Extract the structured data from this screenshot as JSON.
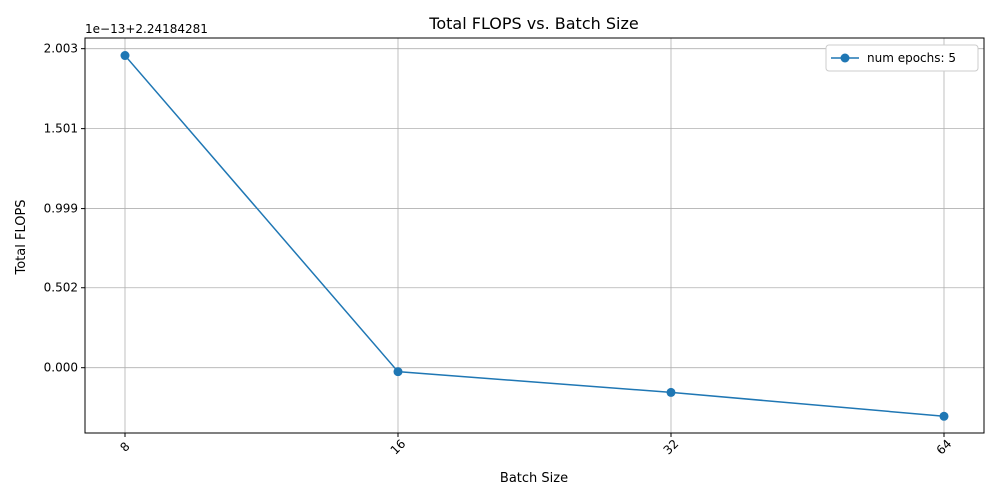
{
  "chart_data": {
    "type": "line",
    "title": "Total FLOPS vs. Batch Size",
    "xlabel": "Batch Size",
    "ylabel": "Total FLOPS",
    "offset_label": "1e−13+2.24184281",
    "categories": [
      "8",
      "16",
      "32",
      "64"
    ],
    "x_tick_rotation": 45,
    "y_ticks": [
      0.0,
      0.502,
      0.999,
      1.501,
      2.003
    ],
    "y_tick_labels": [
      "0.000",
      "0.502",
      "0.999",
      "1.501",
      "2.003"
    ],
    "ylim": [
      -0.41,
      2.07
    ],
    "grid": true,
    "legend_position": "top-right",
    "series": [
      {
        "name": "num epochs: 5",
        "color": "#1f77b4",
        "values": [
          1.96,
          -0.025,
          -0.155,
          -0.305
        ]
      }
    ]
  }
}
